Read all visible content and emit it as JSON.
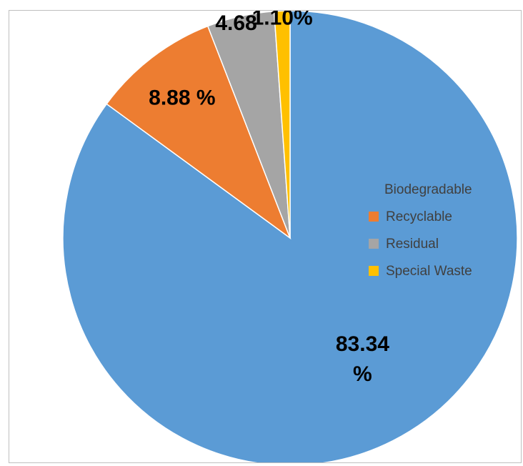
{
  "chart_data": {
    "type": "pie",
    "title": "",
    "series": [
      {
        "categories": [
          "Biodegradable",
          "Recyclable",
          "Residual",
          "Special Waste"
        ],
        "values": [
          83.34,
          8.88,
          4.68,
          1.1
        ],
        "data_labels": [
          "83.34 %",
          "8.88 %",
          "4.68",
          "1.10%"
        ],
        "colors": [
          "#5b9bd5",
          "#ed7d31",
          "#a5a5a5",
          "#ffc000"
        ]
      }
    ],
    "start_angle": "12 o'clock, clockwise",
    "legend": {
      "placement": "right",
      "entries": [
        "Biodegradable",
        "Recyclable",
        "Residual",
        "Special Waste"
      ],
      "first_marker_shown": false
    }
  }
}
